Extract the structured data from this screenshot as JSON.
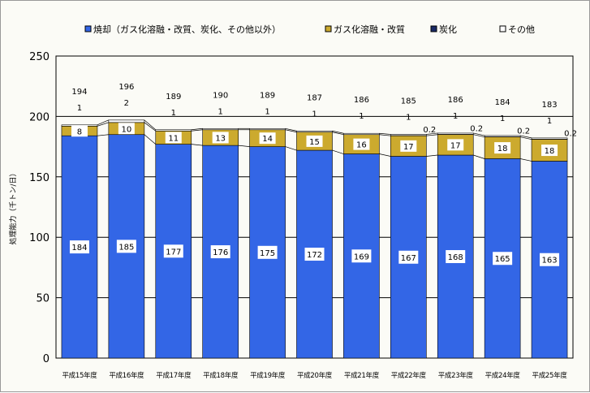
{
  "chart_data": {
    "type": "bar",
    "stacked": true,
    "title": "",
    "xlabel": "",
    "ylabel": "処理能力（千トン/日）",
    "ylim": [
      0,
      250
    ],
    "yticks": [
      0,
      50,
      100,
      150,
      200,
      250
    ],
    "grid": true,
    "legend_position": "top",
    "categories": [
      "平成15年度",
      "平成16年度",
      "平成17年度",
      "平成18年度",
      "平成19年度",
      "平成20年度",
      "平成21年度",
      "平成22年度",
      "平成23年度",
      "平成24年度",
      "平成25年度"
    ],
    "series": [
      {
        "name": "焼却（ガス化溶融・改質、炭化、その他以外）",
        "color": "#3366e6",
        "values": [
          184,
          185,
          177,
          176,
          175,
          172,
          169,
          167,
          168,
          165,
          163
        ]
      },
      {
        "name": "ガス化溶融・改質",
        "color": "#ccaa2e",
        "values": [
          8,
          10,
          11,
          13,
          14,
          15,
          16,
          17,
          17,
          18,
          18
        ]
      },
      {
        "name": "炭化",
        "color": "#1a2a66",
        "values": [
          0,
          0,
          0,
          0,
          0,
          0,
          0,
          0.2,
          0.2,
          0.2,
          0.2
        ]
      },
      {
        "name": "その他",
        "color": "#ffffff",
        "values": [
          1,
          2,
          1,
          1,
          1,
          1,
          1,
          1,
          1,
          1,
          1
        ]
      }
    ],
    "totals": [
      194,
      196,
      189,
      190,
      189,
      187,
      186,
      185,
      186,
      184,
      183
    ]
  }
}
